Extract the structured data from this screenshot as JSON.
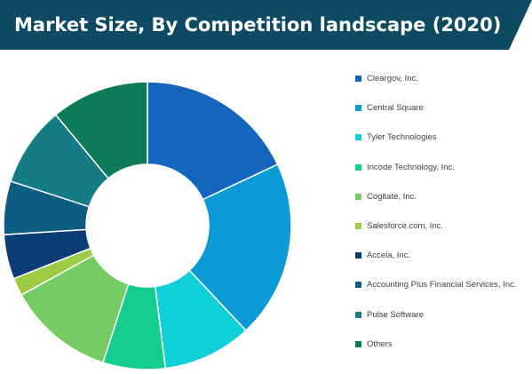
{
  "header": {
    "title": "Market Size, By Competition landscape (2020)",
    "background_color": "#0e4a63"
  },
  "chart_data": {
    "type": "pie",
    "title": "Market Size, By Competition landscape (2020)",
    "donut": true,
    "legend_position": "right",
    "categories": [
      "Cleargov, Inc.",
      "Central Square",
      "Tyler Technologies",
      "Incode Technology, Inc.",
      "Cogitate, Inc.",
      "Salesforce.com, Inc.",
      "Accela, Inc.",
      "Accounting Plus Financial Services, Inc.",
      "Pulse Software",
      "Others"
    ],
    "values": [
      18,
      20,
      10,
      7,
      12,
      2,
      5,
      6,
      9,
      11
    ],
    "colors": [
      "#1565c0",
      "#0a9bd6",
      "#0fcfd8",
      "#14cc8e",
      "#74cc62",
      "#9dcc44",
      "#0b3c76",
      "#0d5c82",
      "#157c86",
      "#0d7a5a"
    ],
    "start_angle_deg": 0,
    "direction": "clockwise"
  }
}
